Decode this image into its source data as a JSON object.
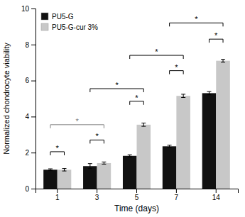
{
  "chart_data": {
    "type": "bar",
    "xlabel": "Time (days)",
    "ylabel": "Normalized chondrocyte viability",
    "categories": [
      "1",
      "3",
      "5",
      "7",
      "14"
    ],
    "series": [
      {
        "name": "PU5-G",
        "color": "#111111",
        "values": [
          1.05,
          1.25,
          1.82,
          2.35,
          5.3
        ],
        "errors": [
          0.05,
          0.14,
          0.06,
          0.06,
          0.09
        ]
      },
      {
        "name": "PU5-G-cur 3%",
        "color": "#c8c8c8",
        "values": [
          1.05,
          1.42,
          3.55,
          5.15,
          7.1
        ],
        "errors": [
          0.07,
          0.06,
          0.09,
          0.09,
          0.08
        ]
      }
    ],
    "ylim": [
      0,
      10
    ],
    "yticks": [
      0,
      2,
      4,
      6,
      8,
      10
    ],
    "grid": false,
    "legend": "upper left",
    "annotations": [
      {
        "text": "*",
        "y": 2.05,
        "categories": [
          "1",
          "1"
        ],
        "color": "black"
      },
      {
        "text": "*",
        "y": 2.7,
        "categories": [
          "3",
          "3"
        ],
        "color": "black"
      },
      {
        "text": "*",
        "y": 3.55,
        "categories": [
          "1",
          "3"
        ],
        "color": "gray"
      },
      {
        "text": "*",
        "y": 4.85,
        "categories": [
          "5",
          "5"
        ],
        "color": "black"
      },
      {
        "text": "*",
        "y": 5.55,
        "categories": [
          "3",
          "5"
        ],
        "color": "black"
      },
      {
        "text": "*",
        "y": 6.55,
        "categories": [
          "7",
          "7"
        ],
        "color": "black"
      },
      {
        "text": "*",
        "y": 7.4,
        "categories": [
          "5",
          "7"
        ],
        "color": "black"
      },
      {
        "text": "*",
        "y": 8.3,
        "categories": [
          "14",
          "14"
        ],
        "color": "black"
      },
      {
        "text": "*",
        "y": 9.2,
        "categories": [
          "7",
          "14"
        ],
        "color": "black"
      }
    ]
  }
}
